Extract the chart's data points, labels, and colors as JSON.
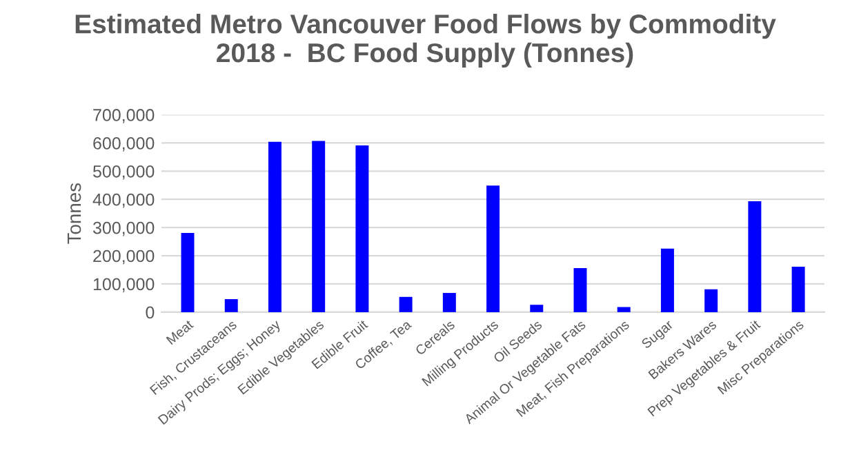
{
  "chart_data": {
    "type": "bar",
    "title": "Estimated Metro Vancouver Food Flows by Commodity\n2018 -  BC Food Supply (Tonnes)",
    "ylabel": "Tonnes",
    "categories": [
      "Meat",
      "Fish, Crustaceans",
      "Dairy Prods; Eggs; Honey",
      "Edible Vegetables",
      "Edible Fruit",
      "Coffee, Tea",
      "Cereals",
      "Milling Products",
      "Oil Seeds",
      "Animal Or Vegetable Fats",
      "Meat, Fish Preparations",
      "Sugar",
      "Bakers Wares",
      "Prep Vegetables & Fruit",
      "Misc Preparations"
    ],
    "values": [
      281000,
      46000,
      604000,
      607000,
      591000,
      54000,
      68000,
      449000,
      26000,
      156000,
      18000,
      225000,
      81000,
      393000,
      161000
    ],
    "color": "#0000ff",
    "ylim": [
      0,
      700000
    ],
    "yticks": [
      {
        "value": 0,
        "label": "0"
      },
      {
        "value": 100000,
        "label": "100,000"
      },
      {
        "value": 200000,
        "label": "200,000"
      },
      {
        "value": 300000,
        "label": "300,000"
      },
      {
        "value": 400000,
        "label": "400,000"
      },
      {
        "value": 500000,
        "label": "500,000"
      },
      {
        "value": 600000,
        "label": "600,000"
      },
      {
        "value": 700000,
        "label": "700,000"
      }
    ],
    "grid": "y"
  }
}
